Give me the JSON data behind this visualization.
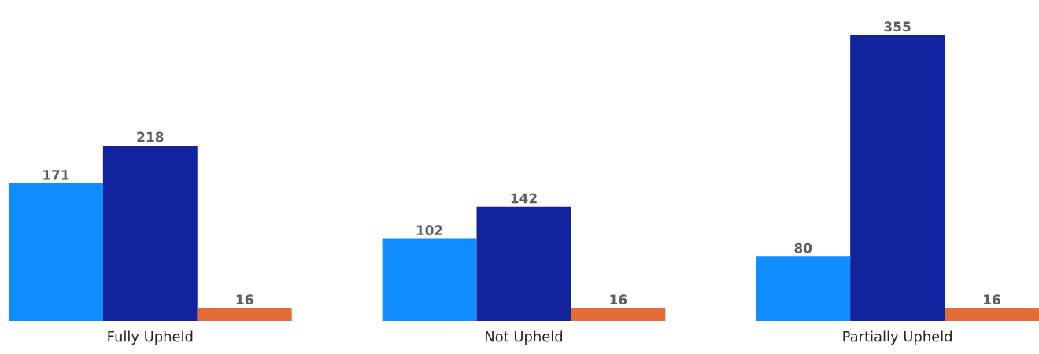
{
  "chart_data": {
    "type": "bar",
    "categories": [
      "Fully Upheld",
      "Not Upheld",
      "Partially Upheld"
    ],
    "series": [
      {
        "color": "#118dff",
        "values": [
          171,
          102,
          80
        ]
      },
      {
        "color": "#12239e",
        "values": [
          218,
          142,
          355
        ]
      },
      {
        "color": "#e66c37",
        "values": [
          16,
          16,
          16
        ]
      }
    ],
    "data_labels": true
  }
}
